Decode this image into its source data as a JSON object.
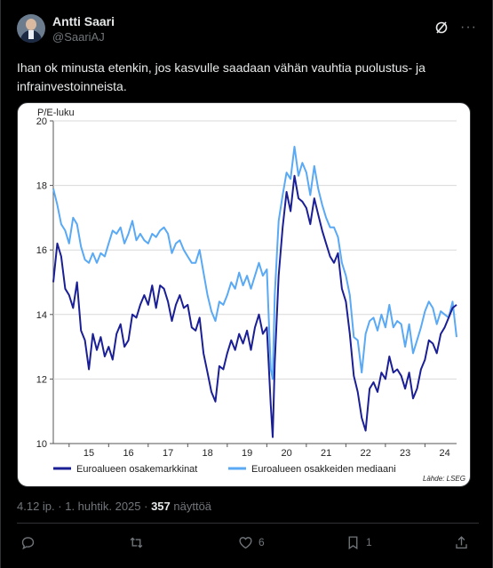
{
  "author": {
    "name": "Antti Saari",
    "handle": "@SaariAJ"
  },
  "post": {
    "text": "Ihan ok minusta etenkin, jos kasvulle saadaan vähän vauhtia puolustus- ja infrainvestoinneista."
  },
  "meta": {
    "time": "4.12 ip.",
    "sep1": " · ",
    "date": "1. huhtik. 2025",
    "sep2": " · ",
    "views": "357",
    "views_label": " näyttöä"
  },
  "actions": {
    "reply_count": "",
    "repost_count": "",
    "like_count": "6",
    "bookmark_count": "1"
  },
  "icons": {
    "grok": "grok-icon",
    "more": "more-icon",
    "reply": "reply-icon",
    "repost": "repost-icon",
    "like": "heart-icon",
    "bookmark": "bookmark-icon",
    "share": "share-icon"
  },
  "chart_data": {
    "type": "line",
    "ylabel": "P/E-luku",
    "ylim": [
      10,
      20
    ],
    "yticks": [
      "10",
      "12",
      "14",
      "16",
      "18",
      "20"
    ],
    "xlim": [
      2014.6,
      2024.8
    ],
    "xticks": [
      "15",
      "16",
      "17",
      "18",
      "19",
      "20",
      "21",
      "22",
      "23",
      "24"
    ],
    "source": "Lähde: LSEG",
    "colors": {
      "dark": "#1b1f96",
      "light": "#59a9f5"
    },
    "series": [
      {
        "name": "Euroalueen osakemarkkinat",
        "color": "#1b1f96",
        "x": [
          2014.6,
          2014.7,
          2014.8,
          2014.9,
          2015.0,
          2015.1,
          2015.2,
          2015.3,
          2015.4,
          2015.5,
          2015.6,
          2015.7,
          2015.8,
          2015.9,
          2016.0,
          2016.1,
          2016.2,
          2016.3,
          2016.4,
          2016.5,
          2016.6,
          2016.7,
          2016.8,
          2016.9,
          2017.0,
          2017.1,
          2017.2,
          2017.3,
          2017.4,
          2017.5,
          2017.6,
          2017.7,
          2017.8,
          2017.9,
          2018.0,
          2018.1,
          2018.2,
          2018.3,
          2018.4,
          2018.5,
          2018.6,
          2018.7,
          2018.8,
          2018.9,
          2019.0,
          2019.1,
          2019.2,
          2019.3,
          2019.4,
          2019.5,
          2019.6,
          2019.7,
          2019.8,
          2019.9,
          2020.0,
          2020.1,
          2020.15,
          2020.2,
          2020.3,
          2020.4,
          2020.5,
          2020.6,
          2020.7,
          2020.8,
          2020.9,
          2021.0,
          2021.1,
          2021.2,
          2021.3,
          2021.4,
          2021.5,
          2021.6,
          2021.7,
          2021.8,
          2021.9,
          2022.0,
          2022.1,
          2022.2,
          2022.3,
          2022.4,
          2022.5,
          2022.6,
          2022.7,
          2022.8,
          2022.9,
          2023.0,
          2023.1,
          2023.2,
          2023.3,
          2023.4,
          2023.5,
          2023.6,
          2023.7,
          2023.8,
          2023.9,
          2024.0,
          2024.1,
          2024.2,
          2024.3,
          2024.4,
          2024.5,
          2024.6,
          2024.7,
          2024.8
        ],
        "y": [
          15.0,
          16.2,
          15.8,
          14.8,
          14.6,
          14.2,
          15.0,
          13.5,
          13.2,
          12.3,
          13.4,
          12.9,
          13.3,
          12.7,
          13.0,
          12.6,
          13.4,
          13.7,
          13.0,
          13.2,
          14.0,
          13.9,
          14.3,
          14.6,
          14.3,
          14.9,
          14.2,
          14.9,
          14.8,
          14.4,
          13.8,
          14.3,
          14.6,
          14.2,
          14.3,
          13.6,
          13.5,
          13.9,
          12.8,
          12.2,
          11.6,
          11.3,
          12.4,
          12.3,
          12.8,
          13.2,
          12.9,
          13.4,
          13.1,
          13.5,
          12.9,
          13.6,
          14.0,
          13.4,
          13.6,
          11.2,
          10.2,
          12.5,
          15.2,
          16.7,
          17.8,
          17.2,
          18.3,
          17.6,
          17.5,
          17.3,
          16.8,
          17.6,
          17.1,
          16.6,
          16.2,
          15.8,
          15.6,
          15.9,
          14.8,
          14.4,
          13.4,
          12.1,
          11.6,
          10.8,
          10.4,
          11.7,
          11.9,
          11.6,
          12.2,
          12.0,
          12.7,
          12.2,
          12.3,
          12.1,
          11.7,
          12.2,
          11.4,
          11.7,
          12.3,
          12.6,
          13.2,
          13.1,
          12.8,
          13.4,
          13.6,
          13.9,
          14.2,
          14.3
        ]
      },
      {
        "name": "Euroalueen osakkeiden mediaani",
        "color": "#59a9f5",
        "x": [
          2014.6,
          2014.7,
          2014.8,
          2014.9,
          2015.0,
          2015.1,
          2015.2,
          2015.3,
          2015.4,
          2015.5,
          2015.6,
          2015.7,
          2015.8,
          2015.9,
          2016.0,
          2016.1,
          2016.2,
          2016.3,
          2016.4,
          2016.5,
          2016.6,
          2016.7,
          2016.8,
          2016.9,
          2017.0,
          2017.1,
          2017.2,
          2017.3,
          2017.4,
          2017.5,
          2017.6,
          2017.7,
          2017.8,
          2017.9,
          2018.0,
          2018.1,
          2018.2,
          2018.3,
          2018.4,
          2018.5,
          2018.6,
          2018.7,
          2018.8,
          2018.9,
          2019.0,
          2019.1,
          2019.2,
          2019.3,
          2019.4,
          2019.5,
          2019.6,
          2019.7,
          2019.8,
          2019.9,
          2020.0,
          2020.1,
          2020.15,
          2020.2,
          2020.3,
          2020.4,
          2020.5,
          2020.6,
          2020.7,
          2020.8,
          2020.9,
          2021.0,
          2021.1,
          2021.2,
          2021.3,
          2021.4,
          2021.5,
          2021.6,
          2021.7,
          2021.8,
          2021.9,
          2022.0,
          2022.1,
          2022.2,
          2022.3,
          2022.4,
          2022.5,
          2022.6,
          2022.7,
          2022.8,
          2022.9,
          2023.0,
          2023.1,
          2023.2,
          2023.3,
          2023.4,
          2023.5,
          2023.6,
          2023.7,
          2023.8,
          2023.9,
          2024.0,
          2024.1,
          2024.2,
          2024.3,
          2024.4,
          2024.5,
          2024.6,
          2024.7,
          2024.8
        ],
        "y": [
          17.9,
          17.4,
          16.8,
          16.6,
          16.2,
          17.0,
          16.8,
          16.1,
          15.7,
          15.6,
          15.9,
          15.6,
          15.9,
          15.8,
          16.2,
          16.6,
          16.5,
          16.7,
          16.2,
          16.5,
          16.9,
          16.3,
          16.5,
          16.3,
          16.2,
          16.5,
          16.4,
          16.6,
          16.7,
          16.5,
          15.9,
          16.2,
          16.3,
          16.0,
          15.8,
          15.6,
          15.6,
          16.0,
          15.3,
          14.6,
          14.1,
          13.8,
          14.4,
          14.3,
          14.6,
          15.0,
          14.8,
          15.3,
          14.9,
          15.2,
          14.8,
          15.2,
          15.6,
          15.2,
          15.4,
          12.3,
          12.0,
          14.6,
          16.9,
          17.7,
          18.4,
          18.2,
          19.2,
          18.3,
          18.7,
          18.4,
          17.7,
          18.6,
          17.9,
          17.4,
          17.0,
          16.7,
          16.7,
          16.4,
          15.6,
          15.2,
          14.6,
          13.3,
          13.2,
          12.2,
          13.4,
          13.8,
          13.9,
          13.5,
          14.0,
          13.6,
          14.3,
          13.6,
          13.8,
          13.7,
          13.0,
          13.7,
          12.8,
          13.2,
          13.6,
          14.1,
          14.4,
          14.2,
          13.7,
          14.1,
          14.0,
          13.9,
          14.4,
          13.3
        ]
      }
    ]
  }
}
